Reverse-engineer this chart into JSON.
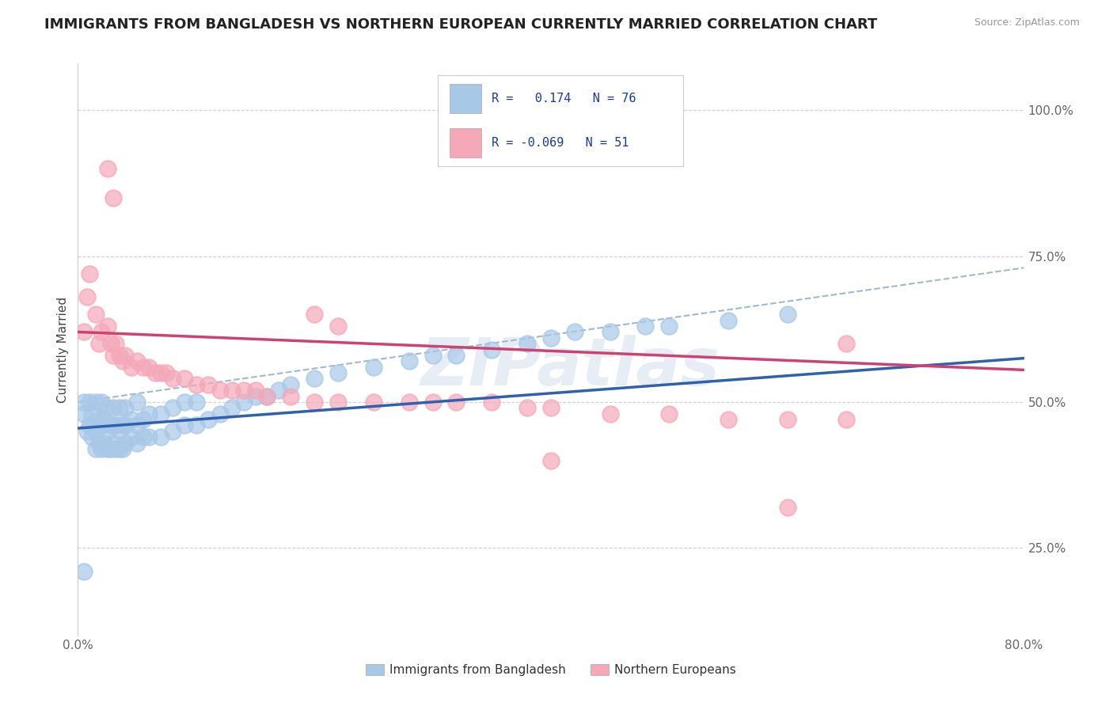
{
  "title": "IMMIGRANTS FROM BANGLADESH VS NORTHERN EUROPEAN CURRENTLY MARRIED CORRELATION CHART",
  "source": "Source: ZipAtlas.com",
  "ylabel": "Currently Married",
  "xlim": [
    0.0,
    0.8
  ],
  "ylim": [
    0.1,
    1.08
  ],
  "bangladesh_R": 0.174,
  "bangladesh_N": 76,
  "northern_R": -0.069,
  "northern_N": 51,
  "bangladesh_color": "#a8c8e8",
  "northern_color": "#f4a8b8",
  "bangladesh_line_color": "#3060b0",
  "northern_line_color": "#d04070",
  "dash_line_color": "#a0b8d0",
  "background_color": "#ffffff",
  "watermark": "ZIPatlas",
  "bangladesh_x": [
    0.005,
    0.005,
    0.008,
    0.01,
    0.01,
    0.012,
    0.012,
    0.015,
    0.015,
    0.015,
    0.018,
    0.018,
    0.02,
    0.02,
    0.02,
    0.022,
    0.022,
    0.025,
    0.025,
    0.025,
    0.028,
    0.028,
    0.03,
    0.03,
    0.03,
    0.032,
    0.032,
    0.035,
    0.035,
    0.035,
    0.038,
    0.038,
    0.04,
    0.04,
    0.04,
    0.045,
    0.045,
    0.05,
    0.05,
    0.05,
    0.055,
    0.055,
    0.06,
    0.06,
    0.07,
    0.07,
    0.08,
    0.08,
    0.09,
    0.09,
    0.1,
    0.1,
    0.11,
    0.12,
    0.13,
    0.14,
    0.15,
    0.16,
    0.17,
    0.18,
    0.2,
    0.22,
    0.25,
    0.28,
    0.3,
    0.32,
    0.35,
    0.38,
    0.4,
    0.42,
    0.45,
    0.48,
    0.5,
    0.55,
    0.6,
    0.005
  ],
  "bangladesh_y": [
    0.48,
    0.5,
    0.45,
    0.46,
    0.5,
    0.44,
    0.48,
    0.42,
    0.45,
    0.5,
    0.43,
    0.47,
    0.42,
    0.46,
    0.5,
    0.43,
    0.47,
    0.42,
    0.45,
    0.49,
    0.42,
    0.46,
    0.43,
    0.46,
    0.49,
    0.42,
    0.46,
    0.42,
    0.45,
    0.49,
    0.42,
    0.46,
    0.43,
    0.46,
    0.49,
    0.44,
    0.47,
    0.43,
    0.46,
    0.5,
    0.44,
    0.47,
    0.44,
    0.48,
    0.44,
    0.48,
    0.45,
    0.49,
    0.46,
    0.5,
    0.46,
    0.5,
    0.47,
    0.48,
    0.49,
    0.5,
    0.51,
    0.51,
    0.52,
    0.53,
    0.54,
    0.55,
    0.56,
    0.57,
    0.58,
    0.58,
    0.59,
    0.6,
    0.61,
    0.62,
    0.62,
    0.63,
    0.63,
    0.64,
    0.65,
    0.21
  ],
  "northern_x": [
    0.005,
    0.008,
    0.01,
    0.015,
    0.018,
    0.02,
    0.025,
    0.028,
    0.03,
    0.032,
    0.035,
    0.038,
    0.04,
    0.045,
    0.05,
    0.055,
    0.06,
    0.065,
    0.07,
    0.075,
    0.08,
    0.09,
    0.1,
    0.11,
    0.12,
    0.13,
    0.14,
    0.15,
    0.16,
    0.18,
    0.2,
    0.22,
    0.25,
    0.28,
    0.3,
    0.32,
    0.35,
    0.38,
    0.4,
    0.45,
    0.5,
    0.55,
    0.6,
    0.65,
    0.025,
    0.03,
    0.2,
    0.22,
    0.4,
    0.6,
    0.65
  ],
  "northern_y": [
    0.62,
    0.68,
    0.72,
    0.65,
    0.6,
    0.62,
    0.63,
    0.6,
    0.58,
    0.6,
    0.58,
    0.57,
    0.58,
    0.56,
    0.57,
    0.56,
    0.56,
    0.55,
    0.55,
    0.55,
    0.54,
    0.54,
    0.53,
    0.53,
    0.52,
    0.52,
    0.52,
    0.52,
    0.51,
    0.51,
    0.5,
    0.5,
    0.5,
    0.5,
    0.5,
    0.5,
    0.5,
    0.49,
    0.49,
    0.48,
    0.48,
    0.47,
    0.47,
    0.47,
    0.9,
    0.85,
    0.65,
    0.63,
    0.4,
    0.32,
    0.6
  ],
  "bangladesh_line": {
    "x0": 0.0,
    "x1": 0.8,
    "y0": 0.455,
    "y1": 0.575
  },
  "northern_line": {
    "x0": 0.0,
    "x1": 0.8,
    "y0": 0.62,
    "y1": 0.555
  },
  "dash_line": {
    "x0": 0.0,
    "x1": 0.8,
    "y0": 0.5,
    "y1": 0.73
  }
}
